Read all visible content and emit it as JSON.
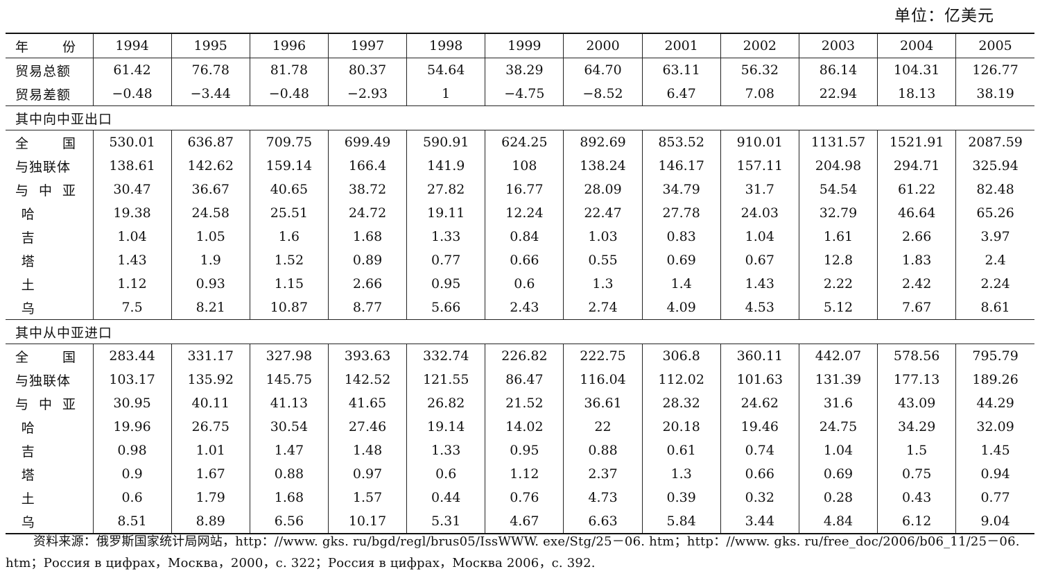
{
  "unit": "单位：亿美元",
  "header": {
    "label": "年份",
    "years": [
      "1994",
      "1995",
      "1996",
      "1997",
      "1998",
      "1999",
      "2000",
      "2001",
      "2002",
      "2003",
      "2004",
      "2005"
    ]
  },
  "top_rows": [
    {
      "label": "贸易总额",
      "values": [
        "61.42",
        "76.78",
        "81.78",
        "80.37",
        "54.64",
        "38.29",
        "64.70",
        "63.11",
        "56.32",
        "86.14",
        "104.31",
        "126.77"
      ]
    },
    {
      "label": "贸易差额",
      "values": [
        "−0.48",
        "−3.44",
        "−0.48",
        "−2.93",
        "1",
        "−4.75",
        "−8.52",
        "6.47",
        "7.08",
        "22.94",
        "18.13",
        "38.19"
      ]
    }
  ],
  "sections": [
    {
      "title": "其中向中亚出口",
      "rows": [
        {
          "label": "全国",
          "values": [
            "530.01",
            "636.87",
            "709.75",
            "699.49",
            "590.91",
            "624.25",
            "892.69",
            "853.52",
            "910.01",
            "1131.57",
            "1521.91",
            "2087.59"
          ]
        },
        {
          "label": "与独联体",
          "values": [
            "138.61",
            "142.62",
            "159.14",
            "166.4",
            "141.9",
            "108",
            "138.24",
            "146.17",
            "157.11",
            "204.98",
            "294.71",
            "325.94"
          ]
        },
        {
          "label": "与中亚",
          "values": [
            "30.47",
            "36.67",
            "40.65",
            "38.72",
            "27.82",
            "16.77",
            "28.09",
            "34.79",
            "31.7",
            "54.54",
            "61.22",
            "82.48"
          ]
        },
        {
          "label": "哈",
          "values": [
            "19.38",
            "24.58",
            "25.51",
            "24.72",
            "19.11",
            "12.24",
            "22.47",
            "27.78",
            "24.03",
            "32.79",
            "46.64",
            "65.26"
          ]
        },
        {
          "label": "吉",
          "values": [
            "1.04",
            "1.05",
            "1.6",
            "1.68",
            "1.33",
            "0.84",
            "1.03",
            "0.83",
            "1.04",
            "1.61",
            "2.66",
            "3.97"
          ]
        },
        {
          "label": "塔",
          "values": [
            "1.43",
            "1.9",
            "1.52",
            "0.89",
            "0.77",
            "0.66",
            "0.55",
            "0.69",
            "0.67",
            "12.8",
            "1.83",
            "2.4"
          ]
        },
        {
          "label": "土",
          "values": [
            "1.12",
            "0.93",
            "1.15",
            "2.66",
            "0.95",
            "0.6",
            "1.3",
            "1.4",
            "1.43",
            "2.22",
            "2.42",
            "2.24"
          ]
        },
        {
          "label": "乌",
          "values": [
            "7.5",
            "8.21",
            "10.87",
            "8.77",
            "5.66",
            "2.43",
            "2.74",
            "4.09",
            "4.53",
            "5.12",
            "7.67",
            "8.61"
          ]
        }
      ]
    },
    {
      "title": "其中从中亚进口",
      "rows": [
        {
          "label": "全国",
          "values": [
            "283.44",
            "331.17",
            "327.98",
            "393.63",
            "332.74",
            "226.82",
            "222.75",
            "306.8",
            "360.11",
            "442.07",
            "578.56",
            "795.79"
          ]
        },
        {
          "label": "与独联体",
          "values": [
            "103.17",
            "135.92",
            "145.75",
            "142.52",
            "121.55",
            "86.47",
            "116.04",
            "112.02",
            "101.63",
            "131.39",
            "177.13",
            "189.26"
          ]
        },
        {
          "label": "与中亚",
          "values": [
            "30.95",
            "40.11",
            "41.13",
            "41.65",
            "26.82",
            "21.52",
            "36.61",
            "28.32",
            "24.62",
            "31.6",
            "43.09",
            "44.29"
          ]
        },
        {
          "label": "哈",
          "values": [
            "19.96",
            "26.75",
            "30.54",
            "27.46",
            "19.14",
            "14.02",
            "22",
            "20.18",
            "19.46",
            "24.75",
            "34.29",
            "32.09"
          ]
        },
        {
          "label": "吉",
          "values": [
            "0.98",
            "1.01",
            "1.47",
            "1.48",
            "1.33",
            "0.95",
            "0.88",
            "0.61",
            "0.74",
            "1.04",
            "1.5",
            "1.45"
          ]
        },
        {
          "label": "塔",
          "values": [
            "0.9",
            "1.67",
            "0.88",
            "0.97",
            "0.6",
            "1.12",
            "2.37",
            "1.3",
            "0.66",
            "0.69",
            "0.75",
            "0.94"
          ]
        },
        {
          "label": "土",
          "values": [
            "0.6",
            "1.79",
            "1.68",
            "1.57",
            "0.44",
            "0.76",
            "4.73",
            "0.39",
            "0.32",
            "0.28",
            "0.43",
            "0.77"
          ]
        },
        {
          "label": "乌",
          "values": [
            "8.51",
            "8.89",
            "6.56",
            "10.17",
            "5.31",
            "4.67",
            "6.63",
            "5.84",
            "3.44",
            "4.84",
            "6.12",
            "9.04"
          ]
        }
      ]
    }
  ],
  "source": "资料来源：俄罗斯国家统计局网站，http：//www. gks. ru/bgd/regl/brus05/IssWWW. exe/Stg/25－06. htm；http：//www. gks. ru/free_doc/2006/b06_11/25－06. htm；Россия в цифрах，Москва，2000，c. 322；Россия в цифрах，Москва 2006，c. 392."
}
